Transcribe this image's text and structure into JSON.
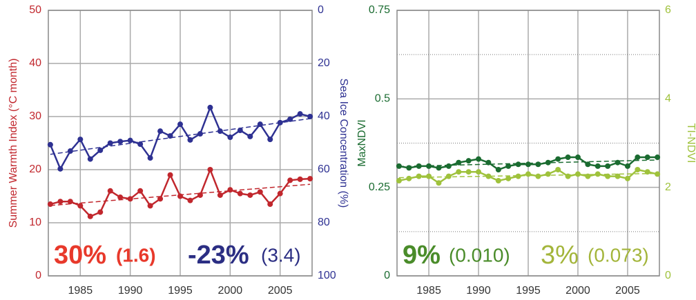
{
  "chart_data": [
    {
      "type": "line",
      "x": [
        1982,
        1983,
        1984,
        1985,
        1986,
        1987,
        1988,
        1989,
        1990,
        1991,
        1992,
        1993,
        1994,
        1995,
        1996,
        1997,
        1998,
        1999,
        2000,
        2001,
        2002,
        2003,
        2004,
        2005,
        2006,
        2007,
        2008
      ],
      "xlim": [
        1981.8,
        2008.2
      ],
      "xticks": [
        1985,
        1990,
        1995,
        2000,
        2005
      ],
      "ylabel": "Summer Warmth Index (°C month)",
      "y2label": "Sea Ice Concentration (%)",
      "ylim": [
        0,
        50
      ],
      "yticks": [
        0,
        10,
        20,
        30,
        40,
        50
      ],
      "ycolor": "#c1272d",
      "y2lim": [
        100,
        0
      ],
      "y2ticks": [
        0,
        20,
        40,
        60,
        80,
        100
      ],
      "y2color": "#2e3192",
      "grid": true,
      "trend": true,
      "series": [
        {
          "name": "Summer Warmth Index",
          "color": "#c1272d",
          "values": [
            13.5,
            14,
            14,
            13.2,
            11.2,
            12,
            16,
            14.8,
            14.5,
            16,
            13.2,
            14.5,
            19,
            15,
            14.2,
            15.2,
            20,
            15.2,
            16.2,
            15.5,
            15.2,
            15.8,
            13.5,
            15.5,
            18,
            18.2,
            18.3
          ]
        },
        {
          "name": "Sea Ice Concentration",
          "color": "#2e3192",
          "axis": "y2",
          "values": [
            50.6,
            59.7,
            53,
            48.6,
            56,
            52.7,
            50,
            49.4,
            49,
            50.4,
            55.6,
            45.5,
            47.3,
            42.9,
            48.8,
            46.5,
            36.6,
            45.5,
            47.8,
            45.2,
            47.5,
            42.9,
            48.6,
            42.3,
            41,
            39,
            40
          ]
        }
      ],
      "annotations": [
        {
          "text": "30%",
          "color": "#e8392b",
          "bold": true,
          "big": true
        },
        {
          "text": "(1.6)",
          "color": "#e8392b",
          "bold": true,
          "big": false
        },
        {
          "text": "-23%",
          "color": "#2b2e83",
          "bold": true,
          "big": true
        },
        {
          "text": "(3.4)",
          "color": "#2b2e83",
          "bold": false,
          "big": false
        }
      ]
    },
    {
      "type": "line",
      "x": [
        1982,
        1983,
        1984,
        1985,
        1986,
        1987,
        1988,
        1989,
        1990,
        1991,
        1992,
        1993,
        1994,
        1995,
        1996,
        1997,
        1998,
        1999,
        2000,
        2001,
        2002,
        2003,
        2004,
        2005,
        2006,
        2007,
        2008
      ],
      "xlim": [
        1981.8,
        2008.2
      ],
      "xticks": [
        1985,
        1990,
        1995,
        2000,
        2005
      ],
      "ylabel": "MaxNDVI",
      "y2label": "TI-NDVI",
      "ylim": [
        0,
        0.75
      ],
      "yticks": [
        0,
        0.25,
        0.5,
        0.75
      ],
      "ycolor": "#1a6b30",
      "y2lim": [
        0,
        6
      ],
      "y2ticks": [
        0,
        2,
        4,
        6
      ],
      "y2color": "#9fc23c",
      "grid": true,
      "y_minor_grid": [
        0.125,
        0.375,
        0.625
      ],
      "trend": true,
      "series": [
        {
          "name": "MaxNDVI",
          "color": "#1a6b30",
          "values": [
            0.31,
            0.305,
            0.31,
            0.31,
            0.305,
            0.31,
            0.32,
            0.325,
            0.33,
            0.32,
            0.3,
            0.31,
            0.315,
            0.315,
            0.315,
            0.32,
            0.33,
            0.335,
            0.335,
            0.315,
            0.31,
            0.31,
            0.32,
            0.31,
            0.335,
            0.335,
            0.335
          ]
        },
        {
          "name": "TI-NDVI",
          "color": "#9fc23c",
          "axis": "y2",
          "values": [
            2.15,
            2.2,
            2.25,
            2.25,
            2.1,
            2.25,
            2.35,
            2.35,
            2.35,
            2.25,
            2.15,
            2.2,
            2.25,
            2.3,
            2.25,
            2.3,
            2.4,
            2.25,
            2.3,
            2.25,
            2.3,
            2.25,
            2.25,
            2.2,
            2.4,
            2.35,
            2.3
          ]
        }
      ],
      "annotations": [
        {
          "text": "9%",
          "color": "#4a8c2a",
          "bold": true,
          "big": true
        },
        {
          "text": "(0.010)",
          "color": "#4a8c2a",
          "bold": false,
          "big": false
        },
        {
          "text": "3%",
          "color": "#a3b53a",
          "bold": false,
          "big": true
        },
        {
          "text": "(0.073)",
          "color": "#a3b53a",
          "bold": false,
          "big": false
        }
      ]
    }
  ]
}
